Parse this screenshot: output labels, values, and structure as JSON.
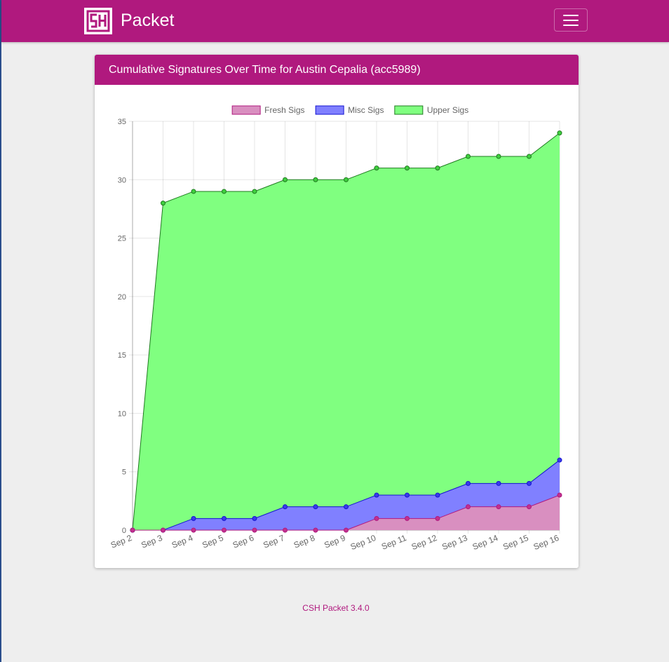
{
  "app": {
    "name": "Packet",
    "brand_color": "#b0197e"
  },
  "card": {
    "title": "Cumulative Signatures Over Time for Austin Cepalia (acc5989)"
  },
  "chart_data": {
    "type": "area",
    "stacked": true,
    "categories": [
      "Sep 2",
      "Sep 3",
      "Sep 4",
      "Sep 5",
      "Sep 6",
      "Sep 7",
      "Sep 8",
      "Sep 9",
      "Sep 10",
      "Sep 11",
      "Sep 12",
      "Sep 13",
      "Sep 14",
      "Sep 15",
      "Sep 16"
    ],
    "series": [
      {
        "name": "Fresh Sigs",
        "cumulative": [
          0,
          0,
          0,
          0,
          0,
          0,
          0,
          0,
          1,
          1,
          1,
          2,
          2,
          2,
          3
        ],
        "fill": "#d98fc0",
        "stroke": "#b0197e",
        "point": "#c1318f"
      },
      {
        "name": "Misc Sigs",
        "cumulative": [
          0,
          0,
          1,
          1,
          1,
          2,
          2,
          2,
          3,
          3,
          3,
          4,
          4,
          4,
          6
        ],
        "fill": "#8080ff",
        "stroke": "#1414d0",
        "point": "#3b3bea"
      },
      {
        "name": "Upper Sigs",
        "cumulative": [
          0,
          28,
          29,
          29,
          29,
          30,
          30,
          30,
          31,
          31,
          31,
          32,
          32,
          32,
          34
        ],
        "fill": "#80ff80",
        "stroke": "#1f7a1f",
        "point": "#3fcf3f"
      }
    ],
    "ylim": [
      0,
      35
    ],
    "yticks": [
      0,
      5,
      10,
      15,
      20,
      25,
      30,
      35
    ],
    "grid": true,
    "legend_position": "top-center",
    "title": "",
    "xlabel": "",
    "ylabel": ""
  },
  "footer": {
    "version_text": "CSH Packet 3.4.0"
  }
}
